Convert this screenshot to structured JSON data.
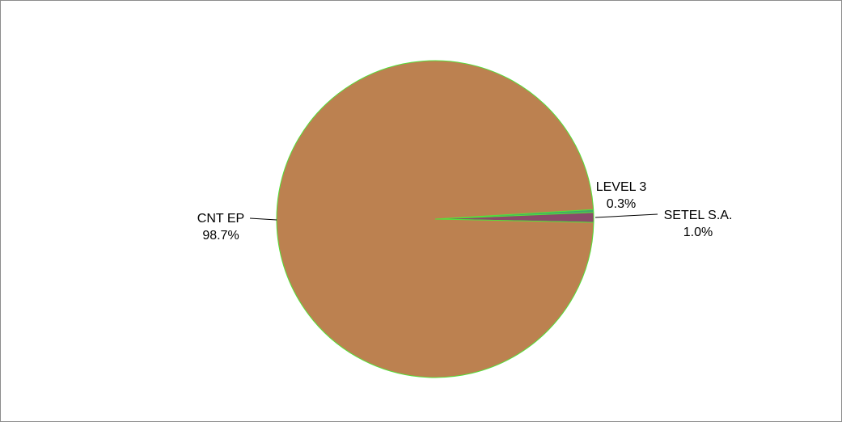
{
  "chart_data": {
    "type": "pie",
    "title": "",
    "slices": [
      {
        "label": "CNT EP",
        "value": 98.7,
        "pct_label": "98.7%",
        "color": "#bc8150"
      },
      {
        "label": "LEVEL 3",
        "value": 0.3,
        "pct_label": "0.3%",
        "color": "#43a76b"
      },
      {
        "label": "SETEL S.A.",
        "value": 1.0,
        "pct_label": "1.0%",
        "color": "#8b4a6a"
      }
    ],
    "slice_border_color": "#55e03a",
    "legend": "none"
  }
}
